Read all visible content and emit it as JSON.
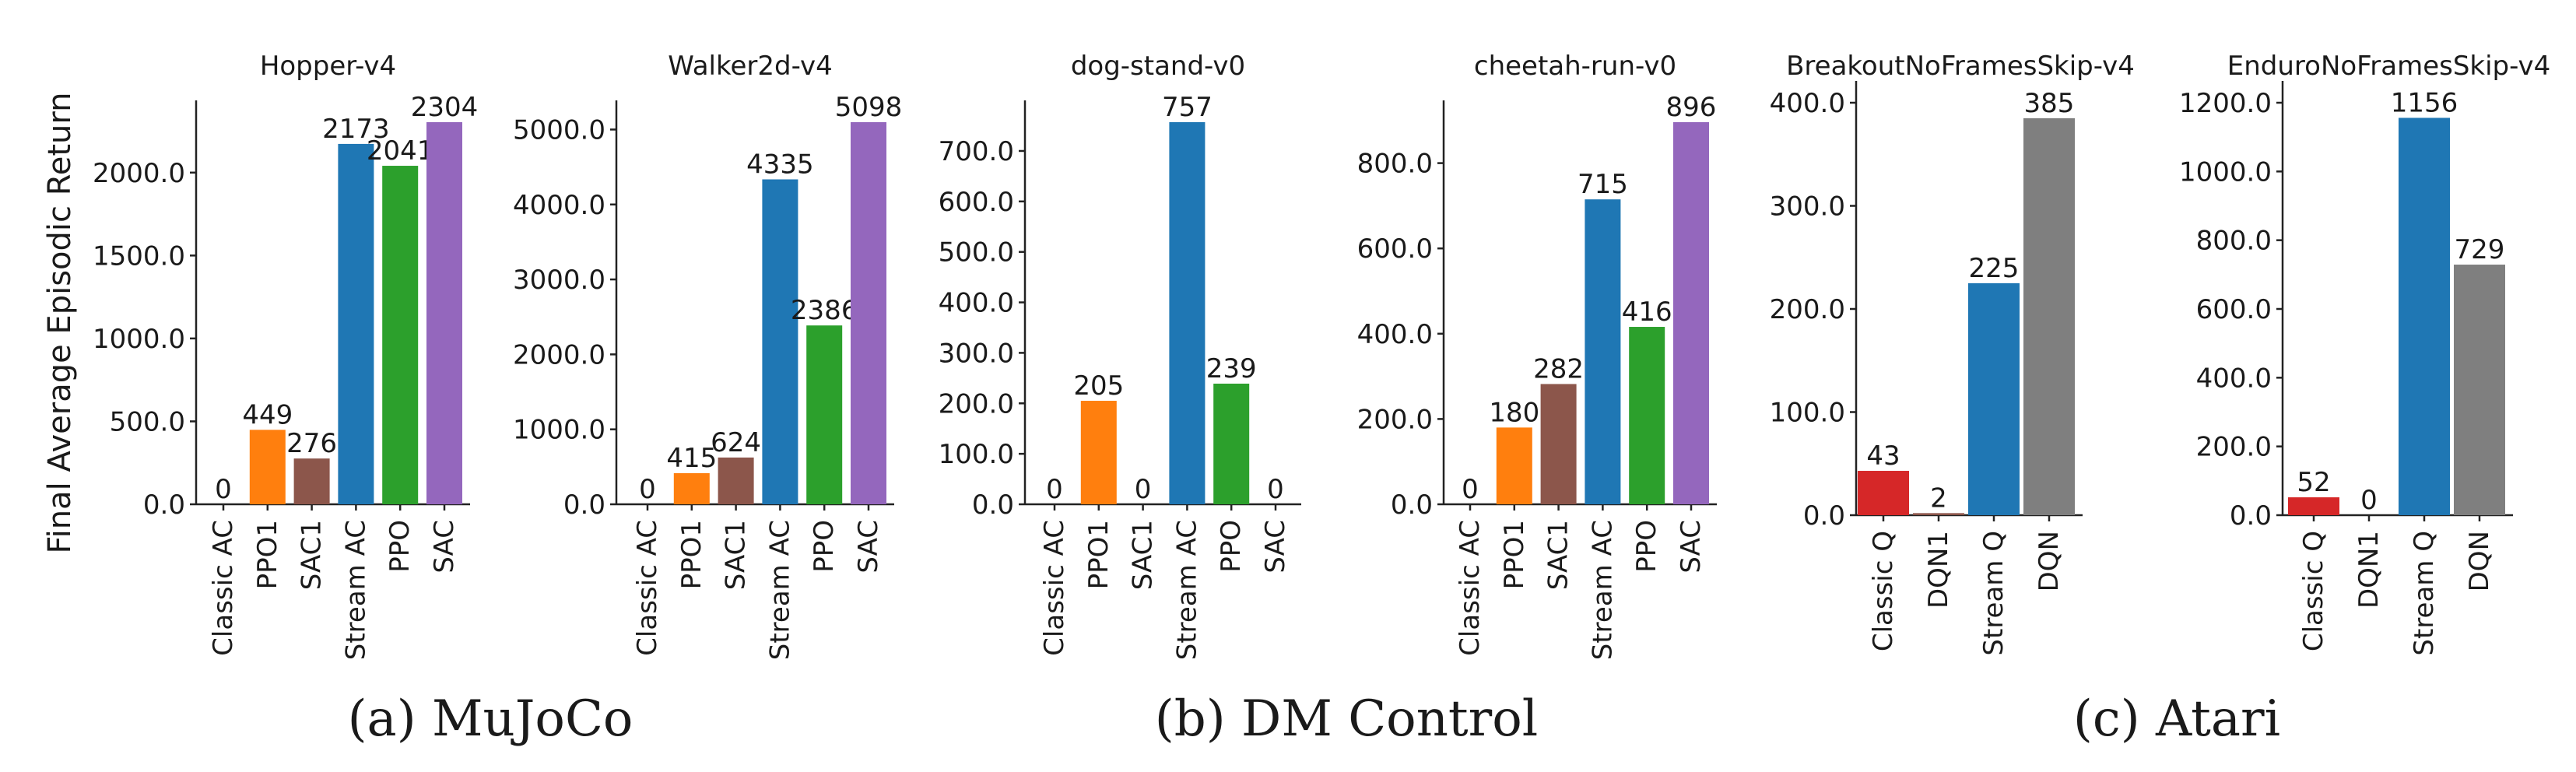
{
  "figure": {
    "ylabel": "Final Average Episodic Return",
    "group_captions": [
      "(a) MuJoCo",
      "(b) DM Control",
      "(c) Atari"
    ]
  },
  "colors": {
    "Classic AC": "#d62728",
    "PPO1": "#ff7f0e",
    "SAC1": "#8c564b",
    "Stream AC": "#1f77b4",
    "PPO": "#2ca02c",
    "SAC": "#9467bd",
    "Classic Q": "#d62728",
    "DQN1": "#8c564b",
    "Stream Q": "#1f77b4",
    "DQN": "#7f7f7f"
  },
  "chart_data": [
    {
      "type": "bar",
      "title": "Hopper-v4",
      "categories": [
        "Classic AC",
        "PPO1",
        "SAC1",
        "Stream AC",
        "PPO",
        "SAC"
      ],
      "values": [
        0,
        449,
        276,
        2173,
        2041,
        2304
      ],
      "value_labels": [
        "0",
        "449",
        "276",
        "2173",
        "2041",
        "2304"
      ],
      "yticks": [
        0,
        500,
        1000,
        1500,
        2000
      ],
      "ytick_labels": [
        "0.0",
        "500.0",
        "1000.0",
        "1500.0",
        "2000.0"
      ],
      "ylim": [
        0,
        2304
      ],
      "group": 0
    },
    {
      "type": "bar",
      "title": "Walker2d-v4",
      "categories": [
        "Classic AC",
        "PPO1",
        "SAC1",
        "Stream AC",
        "PPO",
        "SAC"
      ],
      "values": [
        0,
        415,
        624,
        4335,
        2386,
        5098
      ],
      "value_labels": [
        "0",
        "415",
        "624",
        "4335",
        "2386",
        "5098"
      ],
      "yticks": [
        0,
        1000,
        2000,
        3000,
        4000,
        5000
      ],
      "ytick_labels": [
        "0.0",
        "1000.0",
        "2000.0",
        "3000.0",
        "4000.0",
        "5000.0"
      ],
      "ylim": [
        0,
        5098
      ],
      "group": 0
    },
    {
      "type": "bar",
      "title": "dog-stand-v0",
      "categories": [
        "Classic AC",
        "PPO1",
        "SAC1",
        "Stream AC",
        "PPO",
        "SAC"
      ],
      "values": [
        0,
        205,
        0,
        757,
        239,
        0
      ],
      "value_labels": [
        "0",
        "205",
        "0",
        "757",
        "239",
        "0"
      ],
      "yticks": [
        0,
        100,
        200,
        300,
        400,
        500,
        600,
        700
      ],
      "ytick_labels": [
        "0.0",
        "100.0",
        "200.0",
        "300.0",
        "400.0",
        "500.0",
        "600.0",
        "700.0"
      ],
      "ylim": [
        0,
        757
      ],
      "group": 1
    },
    {
      "type": "bar",
      "title": "cheetah-run-v0",
      "categories": [
        "Classic AC",
        "PPO1",
        "SAC1",
        "Stream AC",
        "PPO",
        "SAC"
      ],
      "values": [
        0,
        180,
        282,
        715,
        416,
        896
      ],
      "value_labels": [
        "0",
        "180",
        "282",
        "715",
        "416",
        "896"
      ],
      "yticks": [
        0,
        200,
        400,
        600,
        800
      ],
      "ytick_labels": [
        "0.0",
        "200.0",
        "400.0",
        "600.0",
        "800.0"
      ],
      "ylim": [
        0,
        896
      ],
      "group": 1
    },
    {
      "type": "bar",
      "title": "BreakoutNoFramesSkip-v4",
      "categories": [
        "Classic Q",
        "DQN1",
        "Stream Q",
        "DQN"
      ],
      "values": [
        43,
        2,
        225,
        385
      ],
      "value_labels": [
        "43",
        "2",
        "225",
        "385"
      ],
      "yticks": [
        0,
        100,
        200,
        300,
        400
      ],
      "ytick_labels": [
        "0.0",
        "100.0",
        "200.0",
        "300.0",
        "400.0"
      ],
      "ylim": [
        0,
        400
      ],
      "group": 2
    },
    {
      "type": "bar",
      "title": "EnduroNoFramesSkip-v4",
      "categories": [
        "Classic Q",
        "DQN1",
        "Stream Q",
        "DQN"
      ],
      "values": [
        52,
        0,
        1156,
        729
      ],
      "value_labels": [
        "52",
        "0",
        "1156",
        "729"
      ],
      "yticks": [
        0,
        200,
        400,
        600,
        800,
        1000,
        1200
      ],
      "ytick_labels": [
        "0.0",
        "200.0",
        "400.0",
        "600.0",
        "800.0",
        "1000.0",
        "1200.0"
      ],
      "ylim": [
        0,
        1200
      ],
      "group": 2
    }
  ]
}
